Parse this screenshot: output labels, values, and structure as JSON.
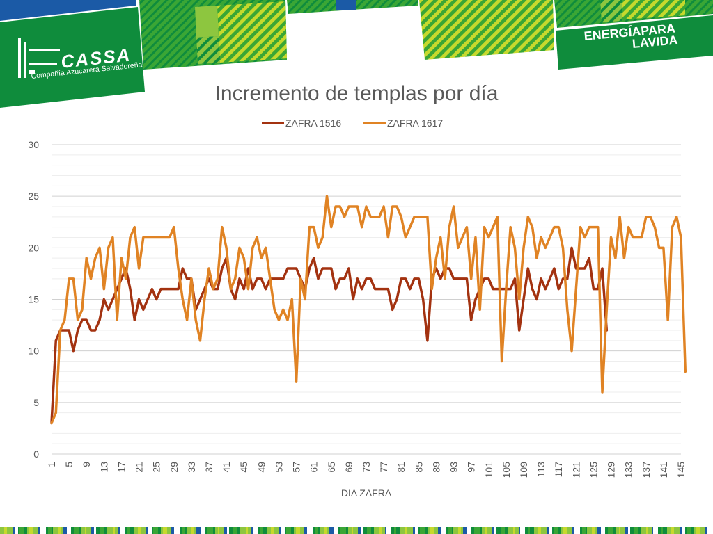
{
  "brand": {
    "name": "CASSA",
    "tagline": "Compañía Azucarera Salvadoreña",
    "slogan_line1": "ENERGÍAPARA",
    "slogan_line2": "LAVIDA"
  },
  "colors": {
    "brand_green": "#0f8c3c",
    "light_green": "#8dc63f",
    "blue": "#1b5aa6",
    "series_1516": "#a33210",
    "series_1617": "#e08324",
    "grid": "#d9d9d9",
    "text": "#595959"
  },
  "chart_data": {
    "type": "line",
    "title": "Incremento de templas por día",
    "xlabel": "DIA ZAFRA",
    "ylabel": "",
    "ylim": [
      0,
      30
    ],
    "yticks": [
      0,
      5,
      10,
      15,
      20,
      25,
      30
    ],
    "xlim": [
      1,
      145
    ],
    "xticks": [
      1,
      5,
      9,
      13,
      17,
      21,
      25,
      29,
      33,
      37,
      41,
      45,
      49,
      53,
      57,
      61,
      65,
      69,
      73,
      77,
      81,
      85,
      89,
      93,
      97,
      101,
      105,
      109,
      113,
      117,
      121,
      125,
      129,
      133,
      137,
      141,
      145
    ],
    "grid": true,
    "legend_position": "top",
    "series": [
      {
        "name": "ZAFRA 1516",
        "color": "#a33210",
        "x_start": 1,
        "values": [
          3,
          11,
          12,
          12,
          12,
          10,
          12,
          13,
          13,
          12,
          12,
          13,
          15,
          14,
          15,
          16,
          17,
          18,
          16,
          13,
          15,
          14,
          15,
          16,
          15,
          16,
          16,
          16,
          16,
          16,
          18,
          17,
          17,
          14,
          15,
          16,
          17,
          16,
          16,
          18,
          19,
          16,
          15,
          17,
          16,
          18,
          16,
          17,
          17,
          16,
          17,
          17,
          17,
          17,
          18,
          18,
          18,
          17,
          16,
          18,
          19,
          17,
          18,
          18,
          18,
          16,
          17,
          17,
          18,
          15,
          17,
          16,
          17,
          17,
          16,
          16,
          16,
          16,
          14,
          15,
          17,
          17,
          16,
          17,
          17,
          15,
          11,
          17,
          18,
          17,
          18,
          18,
          17,
          17,
          17,
          17,
          13,
          15,
          16,
          17,
          17,
          16,
          16,
          16,
          16,
          16,
          17,
          12,
          15,
          18,
          16,
          15,
          17,
          16,
          17,
          18,
          16,
          17,
          17,
          20,
          18,
          18,
          18,
          19,
          16,
          16,
          18,
          12
        ]
      },
      {
        "name": "ZAFRA 1617",
        "color": "#e08324",
        "x_start": 1,
        "values": [
          3,
          4,
          12,
          13,
          17,
          17,
          13,
          14,
          19,
          17,
          19,
          20,
          16,
          20,
          21,
          13,
          19,
          17,
          21,
          22,
          18,
          21,
          21,
          21,
          21,
          21,
          21,
          21,
          22,
          18,
          15,
          13,
          17,
          13,
          11,
          15,
          18,
          16,
          17,
          22,
          20,
          16,
          17,
          20,
          19,
          16,
          20,
          21,
          19,
          20,
          17,
          14,
          13,
          14,
          13,
          15,
          7,
          17,
          15,
          22,
          22,
          20,
          21,
          25,
          22,
          24,
          24,
          23,
          24,
          24,
          24,
          22,
          24,
          23,
          23,
          23,
          24,
          21,
          24,
          24,
          23,
          21,
          22,
          23,
          23,
          23,
          23,
          16,
          19,
          21,
          17,
          22,
          24,
          20,
          21,
          22,
          17,
          21,
          14,
          22,
          21,
          22,
          23,
          9,
          16,
          22,
          20,
          15,
          20,
          23,
          22,
          19,
          21,
          20,
          21,
          22,
          22,
          20,
          14,
          10,
          16,
          22,
          21,
          22,
          22,
          22,
          6,
          14,
          21,
          19,
          23,
          19,
          22,
          21,
          21,
          21,
          23,
          23,
          22,
          20,
          20,
          13,
          22,
          23,
          21,
          8
        ]
      }
    ]
  }
}
